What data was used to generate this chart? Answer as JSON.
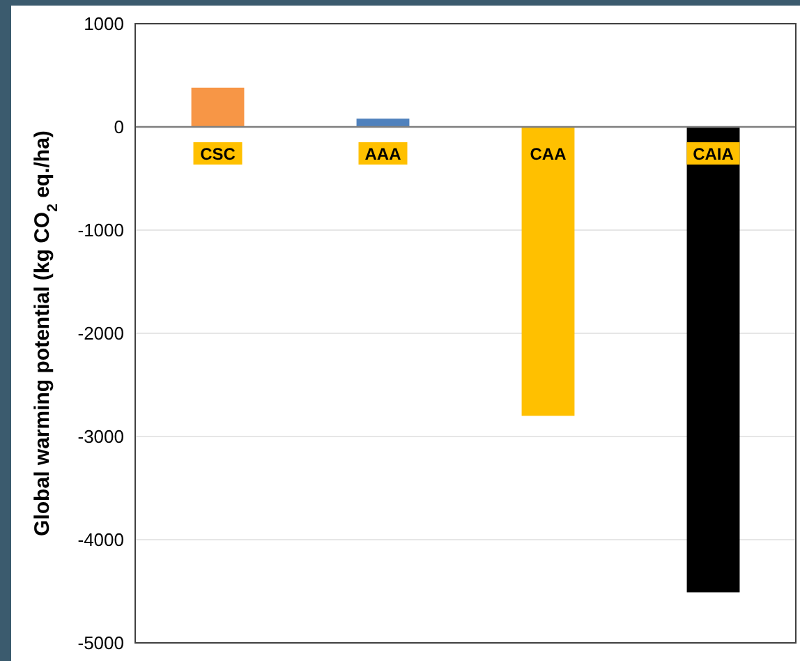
{
  "chart_data": {
    "type": "bar",
    "ylabel": "Global warming potential (kg CO$_{2}$ eq./ha)",
    "categories": [
      "CSC",
      "AAA",
      "CAA",
      "CAIA"
    ],
    "values": [
      380,
      80,
      -2800,
      -4510
    ],
    "colors": [
      "#f79646",
      "#4f81bd",
      "#ffc000",
      "#000000"
    ],
    "ylim": [
      -5000,
      1000
    ],
    "yticks": [
      -5000,
      -4000,
      -3000,
      -2000,
      -1000,
      0,
      1000
    ],
    "grid": "y"
  }
}
